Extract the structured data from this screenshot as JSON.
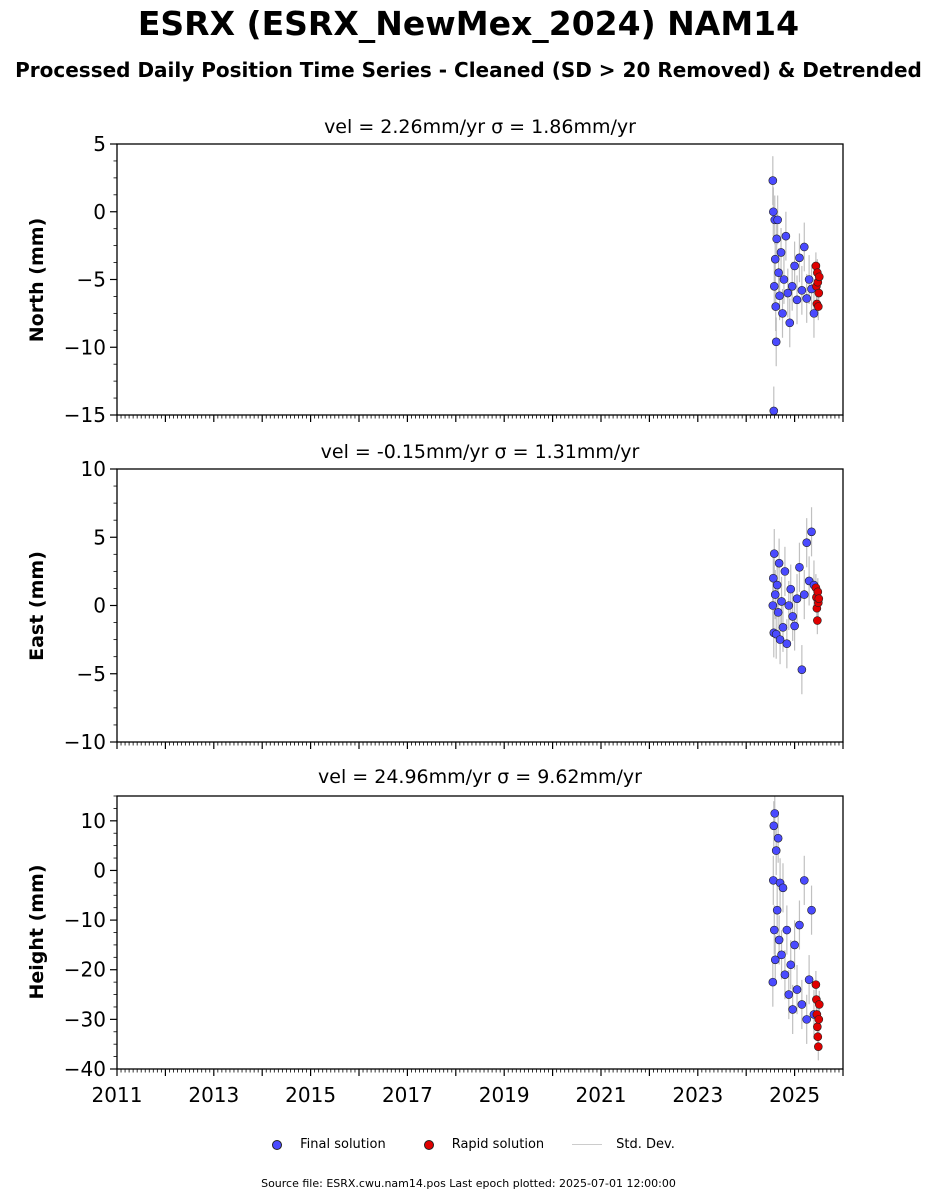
{
  "title": "ESRX (ESRX_NewMex_2024) NAM14",
  "subtitle": "Processed Daily Position Time Series - Cleaned (SD > 20 Removed) & Detrended",
  "legend": {
    "final_label": "Final solution",
    "rapid_label": "Rapid solution",
    "std_label": "Std. Dev."
  },
  "footer": "Source file: ESRX.cwu.nam14.pos  Last epoch plotted: 2025-07-01 12:00:00",
  "colors": {
    "final": "#4a4aff",
    "rapid": "#e00000",
    "std": "#b0b0b0",
    "marker_edge": "#222222"
  },
  "chart_data": [
    {
      "type": "scatter",
      "title": "vel = 2.26mm/yr   σ = 1.86mm/yr",
      "ylabel": "North (mm)",
      "xlim": [
        2011,
        2026
      ],
      "ylim": [
        -15,
        5
      ],
      "xticks": [
        2011,
        2013,
        2015,
        2017,
        2019,
        2021,
        2023,
        2025
      ],
      "yticks": [
        -15,
        -10,
        -5,
        0,
        5
      ],
      "series": [
        {
          "name": "Final solution",
          "x": [
            2024.55,
            2024.56,
            2024.57,
            2024.58,
            2024.59,
            2024.6,
            2024.61,
            2024.62,
            2024.63,
            2024.65,
            2024.67,
            2024.69,
            2024.72,
            2024.75,
            2024.78,
            2024.82,
            2024.86,
            2024.9,
            2024.95,
            2025.0,
            2025.05,
            2025.1,
            2025.15,
            2025.2,
            2025.25,
            2025.3,
            2025.35,
            2025.4
          ],
          "y": [
            2.3,
            0.0,
            -14.7,
            -5.5,
            -0.6,
            -3.5,
            -7.0,
            -9.6,
            -2.0,
            -0.6,
            -4.5,
            -6.2,
            -3.0,
            -7.5,
            -5.0,
            -1.8,
            -6.0,
            -8.2,
            -5.5,
            -4.0,
            -6.5,
            -3.4,
            -5.8,
            -2.6,
            -6.4,
            -5.0,
            -5.7,
            -7.5
          ]
        },
        {
          "name": "Rapid solution",
          "x": [
            2025.44,
            2025.45,
            2025.46,
            2025.47,
            2025.48,
            2025.49,
            2025.5,
            2025.51
          ],
          "y": [
            -4.0,
            -5.5,
            -6.8,
            -4.5,
            -5.2,
            -7.0,
            -6.0,
            -4.8
          ]
        }
      ]
    },
    {
      "type": "scatter",
      "title": "vel = -0.15mm/yr   σ = 1.31mm/yr",
      "ylabel": "East (mm)",
      "xlim": [
        2011,
        2026
      ],
      "ylim": [
        -10,
        10
      ],
      "xticks": [
        2011,
        2013,
        2015,
        2017,
        2019,
        2021,
        2023,
        2025
      ],
      "yticks": [
        -10,
        -5,
        0,
        5,
        10
      ],
      "series": [
        {
          "name": "Final solution",
          "x": [
            2024.55,
            2024.56,
            2024.57,
            2024.58,
            2024.6,
            2024.62,
            2024.64,
            2024.66,
            2024.68,
            2024.7,
            2024.73,
            2024.76,
            2024.8,
            2024.84,
            2024.88,
            2024.92,
            2024.96,
            2025.0,
            2025.05,
            2025.1,
            2025.15,
            2025.2,
            2025.25,
            2025.3,
            2025.35,
            2025.4
          ],
          "y": [
            0.0,
            2.0,
            -2.0,
            3.8,
            0.8,
            -2.1,
            1.5,
            -0.5,
            3.1,
            -2.5,
            0.3,
            -1.6,
            2.5,
            -2.8,
            0.0,
            1.2,
            -0.8,
            -1.5,
            0.5,
            2.8,
            -4.7,
            0.8,
            4.6,
            1.8,
            5.4,
            1.5
          ]
        },
        {
          "name": "Rapid solution",
          "x": [
            2025.44,
            2025.45,
            2025.46,
            2025.47,
            2025.48,
            2025.49,
            2025.5
          ],
          "y": [
            1.3,
            0.6,
            -0.2,
            -1.1,
            1.0,
            0.2,
            0.5
          ]
        }
      ]
    },
    {
      "type": "scatter",
      "title": "vel = 24.96mm/yr   σ = 9.62mm/yr",
      "ylabel": "Height (mm)",
      "xlabel": "",
      "xlim": [
        2011,
        2026
      ],
      "ylim": [
        -40,
        15
      ],
      "xticks": [
        2011,
        2013,
        2015,
        2017,
        2019,
        2021,
        2023,
        2025
      ],
      "xticklabels": [
        "2011",
        "2013",
        "2015",
        "2017",
        "2019",
        "2021",
        "2023",
        "2025"
      ],
      "yticks": [
        -40,
        -30,
        -20,
        -10,
        0,
        10
      ],
      "series": [
        {
          "name": "Final solution",
          "x": [
            2024.55,
            2024.56,
            2024.57,
            2024.58,
            2024.59,
            2024.6,
            2024.62,
            2024.64,
            2024.66,
            2024.68,
            2024.7,
            2024.73,
            2024.76,
            2024.8,
            2024.84,
            2024.88,
            2024.92,
            2024.96,
            2025.0,
            2025.05,
            2025.1,
            2025.15,
            2025.2,
            2025.25,
            2025.3,
            2025.35,
            2025.4
          ],
          "y": [
            -22.5,
            -2.0,
            9.0,
            -12.0,
            11.5,
            -18.0,
            4.0,
            -8.0,
            6.5,
            -14.0,
            -2.5,
            -17.0,
            -3.5,
            -21.0,
            -12.0,
            -25.0,
            -19.0,
            -28.0,
            -15.0,
            -24.0,
            -11.0,
            -27.0,
            -2.0,
            -30.0,
            -22.0,
            -8.0,
            -29.0
          ]
        },
        {
          "name": "Rapid solution",
          "x": [
            2025.44,
            2025.45,
            2025.46,
            2025.47,
            2025.48,
            2025.49,
            2025.5,
            2025.51
          ],
          "y": [
            -23.0,
            -26.0,
            -29.0,
            -31.5,
            -33.5,
            -35.5,
            -30.0,
            -27.0
          ]
        }
      ]
    }
  ]
}
